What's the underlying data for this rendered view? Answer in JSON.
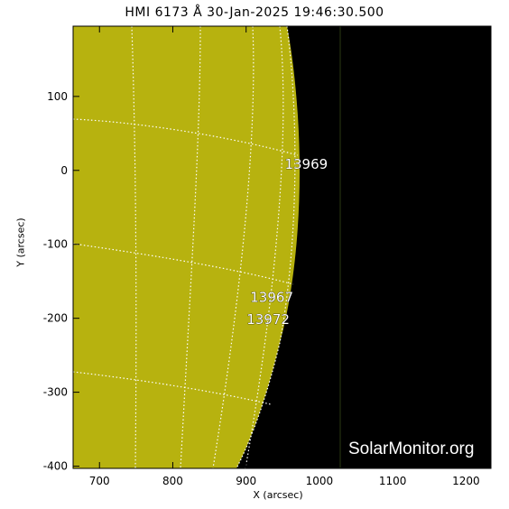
{
  "title": "HMI 6173 Å 30-Jan-2025 19:46:30.500",
  "axes": {
    "xlabel": "X (arcsec)",
    "ylabel": "Y (arcsec)",
    "xlim": [
      664,
      1234
    ],
    "ylim": [
      -403,
      195
    ],
    "xticks": [
      700,
      800,
      900,
      1000,
      1100,
      1200
    ],
    "yticks": [
      100,
      0,
      -100,
      -200,
      -300,
      -400
    ]
  },
  "active_regions": [
    {
      "label": "13969",
      "x": 982,
      "y": 2
    },
    {
      "label": "13967",
      "x": 935,
      "y": -178
    },
    {
      "label": "13972",
      "x": 930,
      "y": -208
    }
  ],
  "colors": {
    "disk": "#b7b20f",
    "space": "#000000",
    "grid": "#ffffff"
  },
  "watermark": "SolarMonitor.org"
}
